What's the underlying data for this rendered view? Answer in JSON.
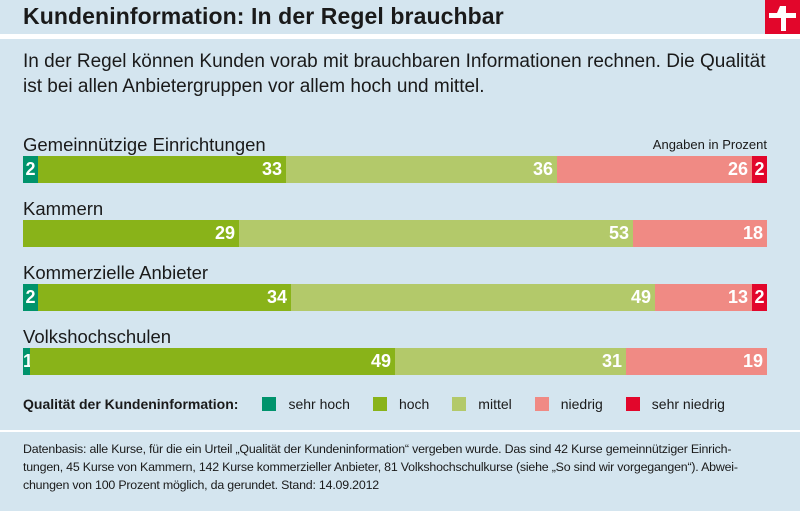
{
  "header": {
    "title": "Kundeninformation: In der Regel brauchbar",
    "logo_icon": "stiftung-warentest-logo-icon"
  },
  "lead": "In der Regel können Kunden vorab mit brauchbaren Informationen rechnen. Die Qualität ist bei allen Anbietergruppen vor allem hoch und mittel.",
  "colors": {
    "sehr_hoch": "#00936c",
    "hoch": "#89b319",
    "mittel": "#b3c96a",
    "niedrig": "#f08a84",
    "sehr_niedrig": "#e2062b",
    "background": "#d4e5ef",
    "logo": "#e2062b"
  },
  "chart_data": {
    "type": "bar",
    "orientation": "horizontal-stacked-100",
    "title": "Kundeninformation: In der Regel brauchbar",
    "unit_note": "Angaben in Prozent",
    "categories": [
      "Gemeinnützige Einrichtungen",
      "Kammern",
      "Kommerzielle Anbieter",
      "Volkshochschulen"
    ],
    "series": [
      {
        "name": "sehr hoch",
        "values": [
          2,
          0,
          2,
          1
        ]
      },
      {
        "name": "hoch",
        "values": [
          33,
          29,
          34,
          49
        ]
      },
      {
        "name": "mittel",
        "values": [
          36,
          53,
          49,
          31
        ]
      },
      {
        "name": "niedrig",
        "values": [
          26,
          18,
          13,
          19
        ]
      },
      {
        "name": "sehr niedrig",
        "values": [
          2,
          0,
          2,
          0
        ]
      }
    ],
    "legend_title": "Qualität der Kundeninformation:",
    "legend_placement": "bottom",
    "xlim": [
      0,
      100
    ],
    "grid": false
  },
  "footer": {
    "lines": [
      "Datenbasis: alle Kurse, für die ein Urteil „Qualität der Kundeninformation“ vergeben wurde. Das sind 42 Kurse gemeinnütziger Einrich-",
      "tungen, 45 Kurse von Kammern, 142 Kurse kommerzieller Anbieter, 81 Volkshochschulkurse (siehe „So sind wir vorgegangen“). Abwei-",
      "chungen von 100 Prozent möglich, da gerundet. Stand: 14.09.2012"
    ]
  }
}
